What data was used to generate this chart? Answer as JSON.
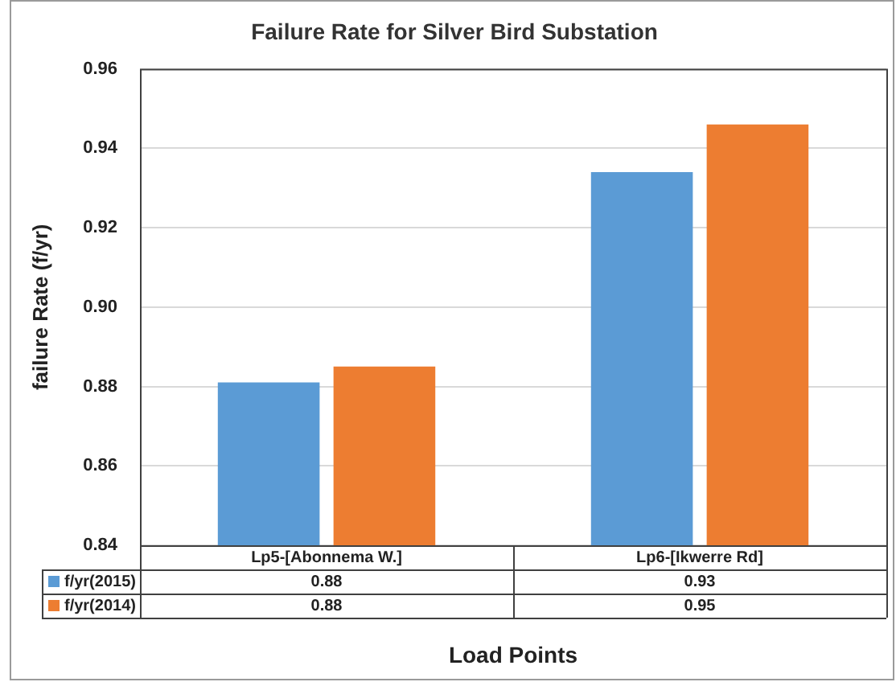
{
  "chart_data": {
    "type": "bar",
    "title": "Failure Rate for Silver Bird Substation",
    "xlabel": "Load Points",
    "ylabel": "failure Rate (f/yr)",
    "categories": [
      "Lp5-[Abonnema W.]",
      "Lp6-[Ikwerre Rd]"
    ],
    "series": [
      {
        "name": "f/yr(2015)",
        "color": "#5b9bd5",
        "values": [
          0.881,
          0.934
        ],
        "value_labels": [
          "0.88",
          "0.93"
        ]
      },
      {
        "name": "f/yr(2014)",
        "color": "#ed7d31",
        "values": [
          0.885,
          0.946
        ],
        "value_labels": [
          "0.88",
          "0.95"
        ]
      }
    ],
    "ylim": [
      0.84,
      0.96
    ],
    "yticks": [
      0.84,
      0.86,
      0.88,
      {
        "value": 0.9,
        "label": "0.90"
      },
      0.92,
      0.94,
      0.96
    ],
    "grid": "y",
    "legend": "bottom"
  }
}
